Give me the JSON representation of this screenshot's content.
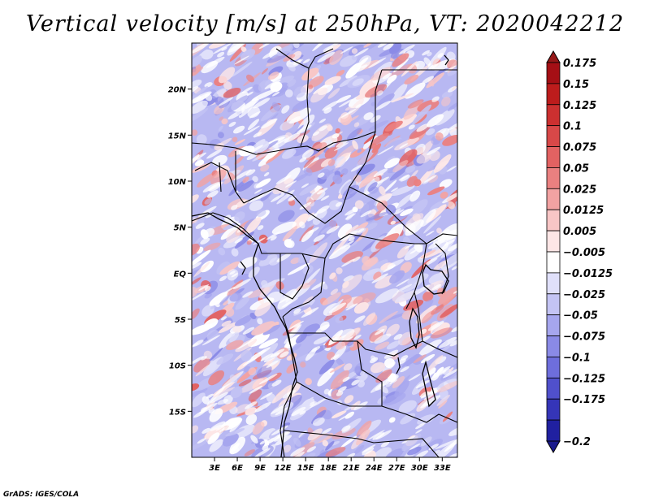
{
  "title": "Vertical velocity [m/s] at 250hPa, VT: 2020042212",
  "credit": "GrADS: IGES/COLA",
  "map": {
    "lon_range": [
      0,
      35
    ],
    "lat_range": [
      -20,
      25
    ],
    "lat_ticks": [
      {
        "value": 20,
        "label": "20N"
      },
      {
        "value": 15,
        "label": "15N"
      },
      {
        "value": 10,
        "label": "10N"
      },
      {
        "value": 5,
        "label": "5N"
      },
      {
        "value": 0,
        "label": "EQ"
      },
      {
        "value": -5,
        "label": "5S"
      },
      {
        "value": -10,
        "label": "10S"
      },
      {
        "value": -15,
        "label": "15S"
      }
    ],
    "lon_ticks": [
      {
        "value": 3,
        "label": "3E"
      },
      {
        "value": 6,
        "label": "6E"
      },
      {
        "value": 9,
        "label": "9E"
      },
      {
        "value": 12,
        "label": "12E"
      },
      {
        "value": 15,
        "label": "15E"
      },
      {
        "value": 18,
        "label": "18E"
      },
      {
        "value": 21,
        "label": "21E"
      },
      {
        "value": 24,
        "label": "24E"
      },
      {
        "value": 27,
        "label": "27E"
      },
      {
        "value": 30,
        "label": "30E"
      },
      {
        "value": 33,
        "label": "33E"
      }
    ]
  },
  "colorbar": {
    "levels": [
      {
        "label": "0.175",
        "color": "#a50f15"
      },
      {
        "label": "0.15",
        "color": "#bd1c1c"
      },
      {
        "label": "0.125",
        "color": "#cc3030"
      },
      {
        "label": "0.1",
        "color": "#d84848"
      },
      {
        "label": "0.075",
        "color": "#e26262"
      },
      {
        "label": "0.05",
        "color": "#ea8080"
      },
      {
        "label": "0.025",
        "color": "#f2a2a2"
      },
      {
        "label": "0.0125",
        "color": "#f8c6c6"
      },
      {
        "label": "0.005",
        "color": "#fde6e6"
      },
      {
        "label": "−0.005",
        "color": "#ffffff"
      },
      {
        "label": "−0.0125",
        "color": "#e0e0fa"
      },
      {
        "label": "−0.025",
        "color": "#c4c4f4"
      },
      {
        "label": "−0.05",
        "color": "#a6a6ee"
      },
      {
        "label": "−0.075",
        "color": "#8a8ae6"
      },
      {
        "label": "−0.1",
        "color": "#6e6edc"
      },
      {
        "label": "−0.125",
        "color": "#5050cc"
      },
      {
        "label": "−0.175",
        "color": "#3535b8"
      },
      {
        "label": "−0.2",
        "color": "#2020a0"
      }
    ],
    "top_color": "#961818",
    "bottom_color": "#1a1a8c"
  }
}
